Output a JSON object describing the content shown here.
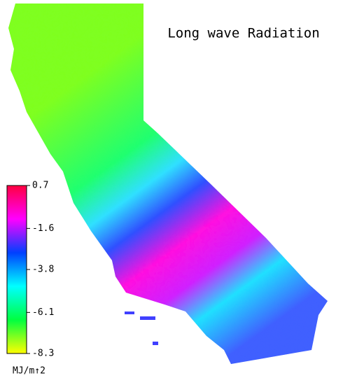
{
  "title": "Long wave Radiation",
  "colorbar": {
    "lim": [
      -8.3,
      0.7
    ],
    "ticks": [
      0.7,
      -1.6,
      -3.8,
      -6.1,
      -8.3
    ],
    "label": "MJ/m↑2",
    "colors": [
      "#ffff00",
      "#00ff40",
      "#00ffff",
      "#0040ff",
      "#ff00ff",
      "#ff0040"
    ]
  }
}
